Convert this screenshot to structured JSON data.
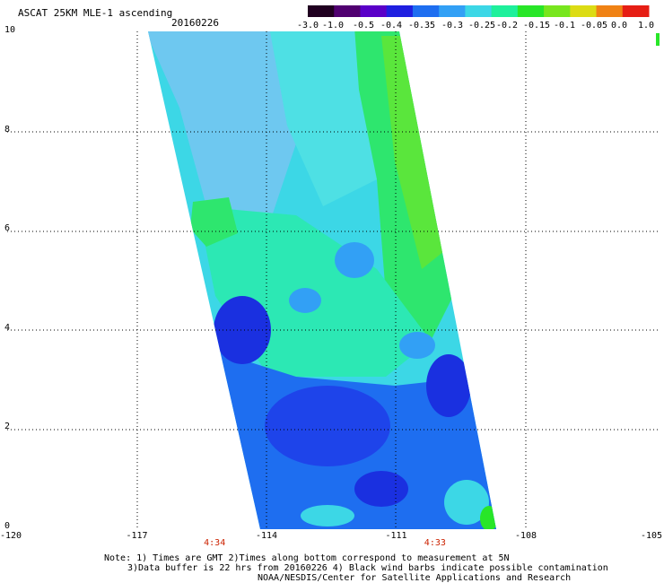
{
  "header": {
    "title": "ASCAT 25KM MLE-1 ascending",
    "date": "20160226"
  },
  "colorbar": {
    "labels": [
      "-3.0",
      "-1.0",
      "-0.5",
      "-0.4",
      "-0.35",
      "-0.3",
      "-0.25",
      "-0.2",
      "-0.15",
      "-0.1",
      "-0.05",
      "0.0",
      "1.0"
    ],
    "colors": [
      "#200020",
      "#500070",
      "#5a00c8",
      "#1f1fe0",
      "#1e6ef0",
      "#32a0f5",
      "#3cd7e6",
      "#1ef09b",
      "#28e628",
      "#78e61e",
      "#dcdc14",
      "#f08214",
      "#e61e14"
    ]
  },
  "map": {
    "x_axis": {
      "labels": [
        "-120",
        "-117",
        "-114",
        "-111",
        "-108",
        "-105"
      ],
      "values": [
        -120,
        -117,
        -114,
        -111,
        -108,
        -105
      ]
    },
    "y_axis": {
      "labels": [
        "0",
        "2",
        "4",
        "6",
        "8",
        "10"
      ],
      "values": [
        0,
        2,
        4,
        6,
        8,
        10
      ]
    },
    "pass_times": [
      {
        "label": "4:34",
        "lon": -115.2
      },
      {
        "label": "4:33",
        "lon": -110.1
      }
    ],
    "swath_color_regions": {
      "upper_west": "#6ec8f0",
      "upper_center": "#5ae6dc",
      "east_edge": "#2ee66e",
      "middle": "#3cd7e6",
      "south_blue": "#1e4ef0",
      "deep_blue": "#1a30e0"
    }
  },
  "footer": {
    "note_line1": "Note: 1) Times are GMT 2)Times along bottom correspond to measurement at 5N",
    "note_line2": "3)Data buffer is 22 hrs from 20160226 4) Black wind barbs indicate possible contamination",
    "note_line3": "NOAA/NESDIS/Center for Satellite Applications and Research"
  }
}
